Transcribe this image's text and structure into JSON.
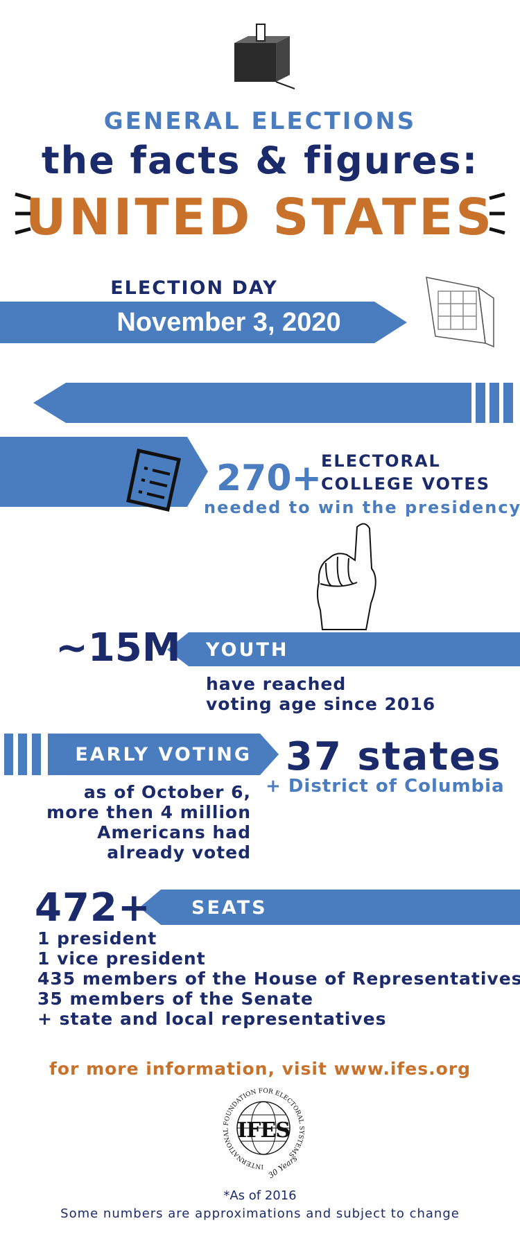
{
  "header": {
    "kicker": "GENERAL ELECTIONS",
    "title": "the facts & figures:",
    "country": "UNITED STATES"
  },
  "election_day": {
    "label": "ELECTION DAY",
    "date": "November 3, 2020"
  },
  "electoral": {
    "number": "270+",
    "label_line1": "ELECTORAL",
    "label_line2": "COLLEGE VOTES",
    "note": "needed to win the presidency"
  },
  "youth": {
    "number": "~15M",
    "label": "YOUTH",
    "note_line1": "have reached",
    "note_line2": "voting age since 2016"
  },
  "early_voting": {
    "label": "EARLY VOTING",
    "number": "37 states",
    "extra": "+ District of Columbia",
    "note": [
      "as of October 6,",
      "more then 4 million",
      "Americans had",
      "already voted"
    ]
  },
  "seats": {
    "number": "472+",
    "label": "SEATS",
    "items": [
      "1 president",
      "1 vice president",
      "435 members of the House of Representatives",
      "35 members of the Senate",
      "+ state and local representatives"
    ]
  },
  "more_info": "for more information, visit www.ifes.org",
  "logo": {
    "ring": "INTERNATIONAL FOUNDATION FOR ELECTORAL SYSTEMS",
    "name": "IFES",
    "years": "30 Years"
  },
  "footnote": {
    "line1": "*As of 2016",
    "line2": "Some numbers are approximations and subject to change"
  }
}
